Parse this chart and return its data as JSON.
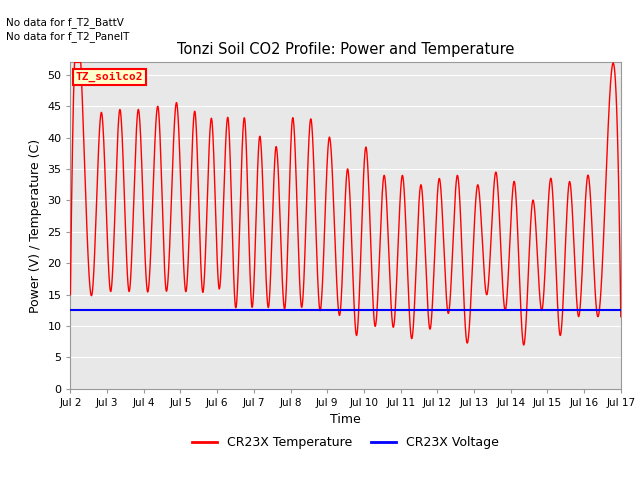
{
  "title": "Tonzi Soil CO2 Profile: Power and Temperature",
  "no_data_text": [
    "No data for f_T2_BattV",
    "No data for f_T2_PanelT"
  ],
  "box_label": "TZ_soilco2",
  "xlabel": "Time",
  "ylabel": "Power (V) / Temperature (C)",
  "ylim": [
    0,
    52
  ],
  "yticks": [
    0,
    5,
    10,
    15,
    20,
    25,
    30,
    35,
    40,
    45,
    50
  ],
  "x_start_day": 2,
  "x_end_day": 17,
  "xtick_days": [
    2,
    3,
    4,
    5,
    6,
    7,
    8,
    9,
    10,
    11,
    12,
    13,
    14,
    15,
    16,
    17
  ],
  "voltage_level": 12.5,
  "temp_color": "#FF0000",
  "voltage_color": "#0000FF",
  "bg_color": "#E8E8E8",
  "legend_label_temp": "CR23X Temperature",
  "legend_label_volt": "CR23X Voltage",
  "peak_days": [
    2.35,
    2.85,
    3.35,
    3.85,
    4.4,
    4.9,
    5.4,
    5.85,
    6.3,
    6.75,
    7.15,
    7.6,
    8.05,
    8.55,
    9.05,
    9.55,
    10.05,
    10.55,
    11.05,
    11.55,
    12.05,
    12.55,
    13.1,
    13.6,
    14.1,
    14.6,
    15.1,
    15.6,
    16.1,
    16.6
  ],
  "peak_vals": [
    42.0,
    44.0,
    44.5,
    44.5,
    44.5,
    45.5,
    44.0,
    43.0,
    43.0,
    43.0,
    40.0,
    38.5,
    43.0,
    43.0,
    40.0,
    35.0,
    38.5,
    34.0,
    34.0,
    32.5,
    33.5,
    34.0,
    32.5,
    34.5,
    33.0,
    30.0,
    33.5,
    33.0,
    34.0,
    34.0
  ],
  "trough_days": [
    2.0,
    2.6,
    3.1,
    3.6,
    4.1,
    4.6,
    5.15,
    5.6,
    6.05,
    6.5,
    6.95,
    7.4,
    7.85,
    8.3,
    8.8,
    9.35,
    9.8,
    10.3,
    10.8,
    11.3,
    11.8,
    12.3,
    12.8,
    13.35,
    13.85,
    14.35,
    14.85,
    15.35,
    15.85,
    16.35,
    17.0
  ],
  "trough_vals": [
    15.0,
    15.5,
    15.5,
    15.5,
    15.5,
    16.0,
    15.5,
    15.5,
    16.0,
    13.0,
    13.0,
    13.0,
    13.0,
    13.0,
    12.5,
    12.0,
    8.5,
    10.0,
    9.8,
    8.0,
    9.5,
    12.0,
    7.5,
    15.0,
    12.5,
    7.0,
    12.5,
    8.5,
    11.5,
    12.0,
    11.5
  ]
}
